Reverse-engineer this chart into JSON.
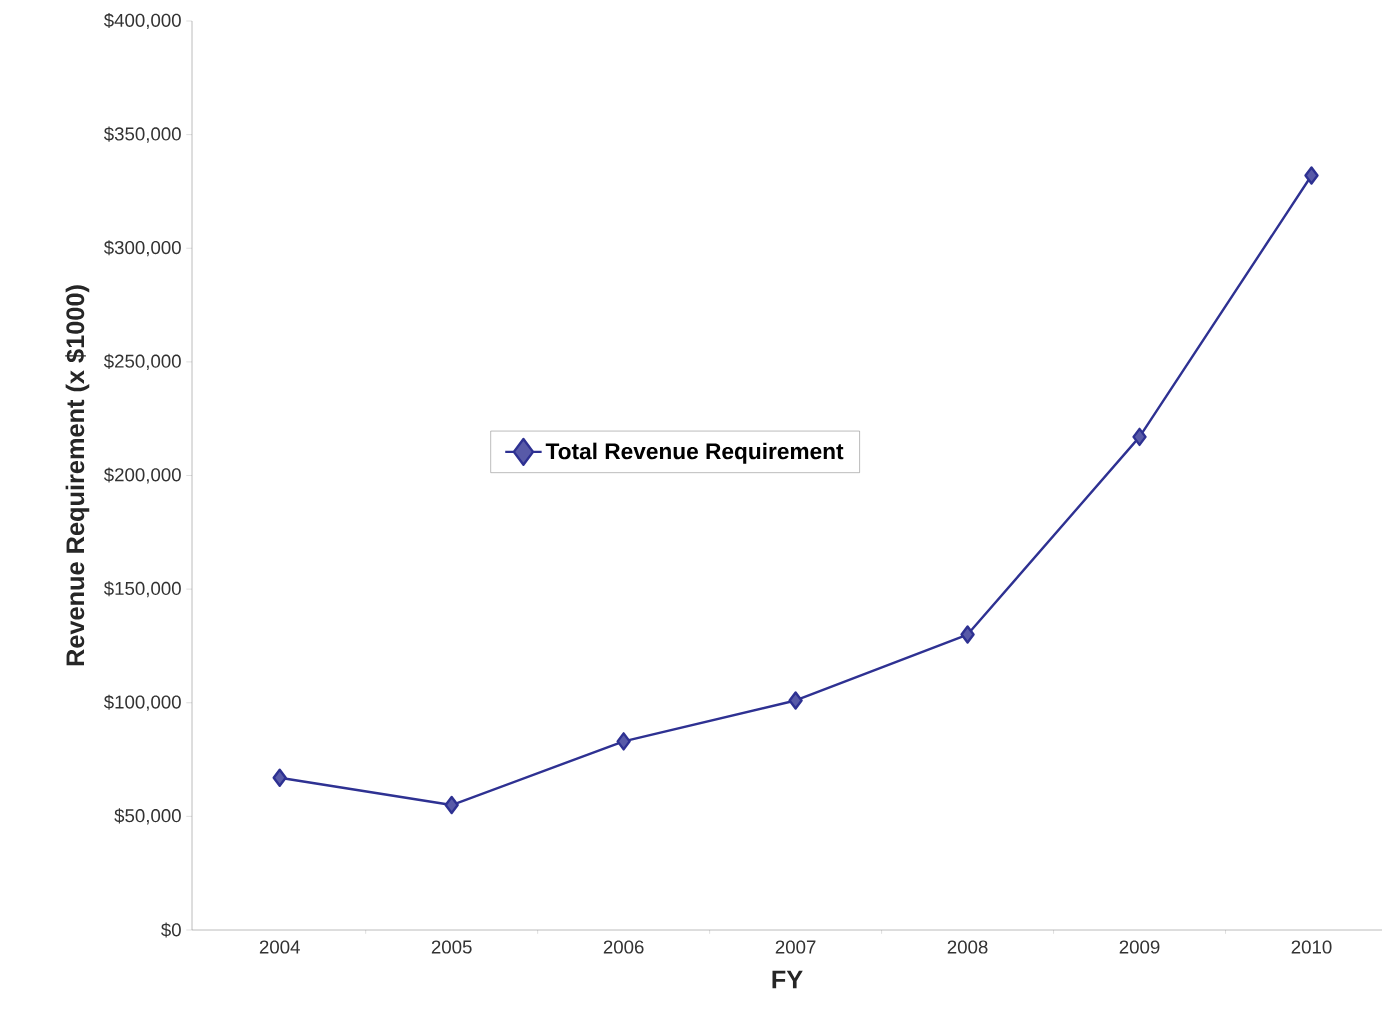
{
  "chart_data": {
    "type": "line",
    "xlabel": "FY",
    "ylabel": "Revenue Requirement (x $1000)",
    "categories": [
      "2004",
      "2005",
      "2006",
      "2007",
      "2008",
      "2009",
      "2010"
    ],
    "series": [
      {
        "name": "Total Revenue Requirement",
        "color": "#2e3192",
        "values": [
          67000,
          55000,
          83000,
          101000,
          130000,
          217000,
          332000
        ]
      }
    ],
    "ylim": [
      0,
      400000
    ],
    "yticks": [
      {
        "value": 0,
        "label": "$0"
      },
      {
        "value": 50000,
        "label": "$50,000"
      },
      {
        "value": 100000,
        "label": "$100,000"
      },
      {
        "value": 150000,
        "label": "$150,000"
      },
      {
        "value": 200000,
        "label": "$200,000"
      },
      {
        "value": 250000,
        "label": "$250,000"
      },
      {
        "value": 300000,
        "label": "$300,000"
      },
      {
        "value": 350000,
        "label": "$350,000"
      },
      {
        "value": 400000,
        "label": "$400,000"
      }
    ],
    "legend": "center",
    "marker": "diamond",
    "line_style": "solid",
    "grid": false
  }
}
